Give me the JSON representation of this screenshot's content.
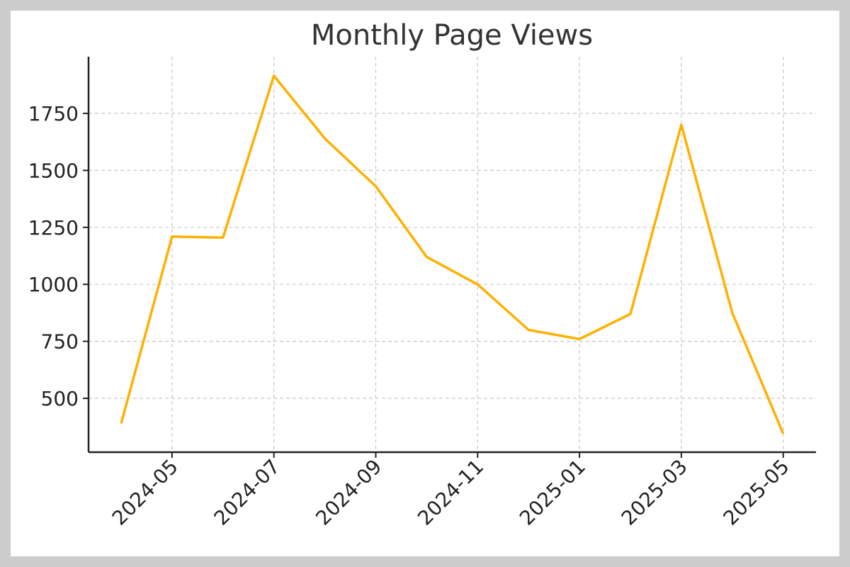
{
  "chart_data": {
    "type": "line",
    "title": "Monthly Page Views",
    "xlabel": "",
    "ylabel": "",
    "x": [
      "2024-04",
      "2024-05",
      "2024-06",
      "2024-07",
      "2024-08",
      "2024-09",
      "2024-10",
      "2024-11",
      "2024-12",
      "2025-01",
      "2025-02",
      "2025-03",
      "2025-04",
      "2025-05"
    ],
    "series": [
      {
        "name": "",
        "values": [
          390,
          1210,
          1205,
          1915,
          1640,
          1430,
          1120,
          1000,
          800,
          760,
          870,
          1700,
          875,
          345
        ]
      }
    ],
    "x_tick_labels": [
      "2024-05",
      "2024-07",
      "2024-09",
      "2024-11",
      "2025-01",
      "2025-03",
      "2025-05"
    ],
    "y_ticks": [
      500,
      750,
      1000,
      1250,
      1500,
      1750
    ],
    "ylim": [
      290,
      1990
    ],
    "line_color": "#FFB000",
    "grid": true,
    "legend": "none"
  }
}
